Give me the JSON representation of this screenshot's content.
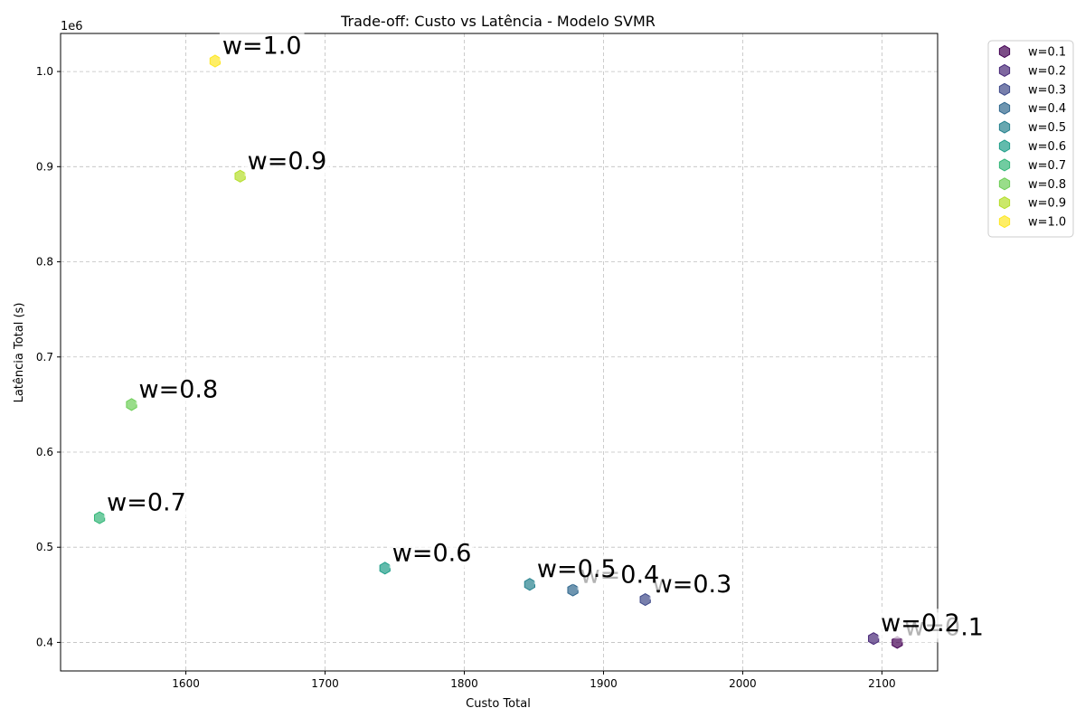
{
  "chart_data": {
    "type": "scatter",
    "title": "Trade-off: Custo vs Latência - Modelo SVMR",
    "xlabel": "Custo Total",
    "ylabel": "Latência Total (s)",
    "y_offset_label": "1e6",
    "xlim": [
      1510,
      2140
    ],
    "ylim": [
      0.37,
      1.04
    ],
    "x_ticks": [
      1600,
      1700,
      1800,
      1900,
      2000,
      2100
    ],
    "x_tick_labels": [
      "1600",
      "1700",
      "1800",
      "1900",
      "2000",
      "2100"
    ],
    "y_ticks": [
      0.4,
      0.5,
      0.6,
      0.7,
      0.8,
      0.9,
      1.0
    ],
    "y_tick_labels": [
      "0.4",
      "0.5",
      "0.6",
      "0.7",
      "0.8",
      "0.9",
      "1.0"
    ],
    "grid": true,
    "grid_style": "dashed",
    "legend_position": "outside-right-top",
    "marker": "hexagon",
    "series": [
      {
        "name": "w=0.1",
        "label": "w=0.1",
        "x": 2111,
        "y": 0.4,
        "color": "#440154"
      },
      {
        "name": "w=0.2",
        "label": "w=0.2",
        "x": 2094,
        "y": 0.404,
        "color": "#482878"
      },
      {
        "name": "w=0.3",
        "label": "w=0.3",
        "x": 1930,
        "y": 0.445,
        "color": "#3e4989"
      },
      {
        "name": "w=0.4",
        "label": "w=0.4",
        "x": 1878,
        "y": 0.455,
        "color": "#31688e"
      },
      {
        "name": "w=0.5",
        "label": "w=0.5",
        "x": 1847,
        "y": 0.461,
        "color": "#26828e"
      },
      {
        "name": "w=0.6",
        "label": "w=0.6",
        "x": 1743,
        "y": 0.478,
        "color": "#1f9e89"
      },
      {
        "name": "w=0.7",
        "label": "w=0.7",
        "x": 1538,
        "y": 0.531,
        "color": "#35b779"
      },
      {
        "name": "w=0.8",
        "label": "w=0.8",
        "x": 1561,
        "y": 0.65,
        "color": "#6ece58"
      },
      {
        "name": "w=0.9",
        "label": "w=0.9",
        "x": 1639,
        "y": 0.89,
        "color": "#b5de2b"
      },
      {
        "name": "w=1.0",
        "label": "w=1.0",
        "x": 1621,
        "y": 1.011,
        "color": "#fde725"
      }
    ]
  }
}
